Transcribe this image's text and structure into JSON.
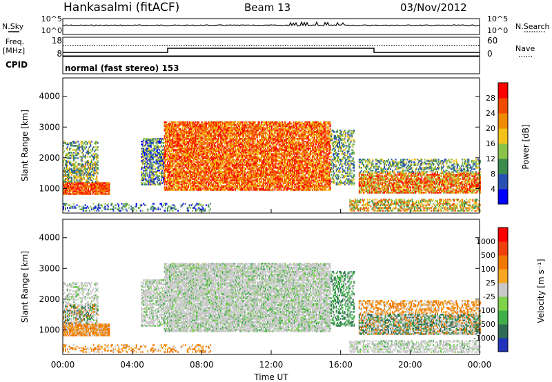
{
  "header": {
    "station": "Hankasalmi (fitACF)",
    "beam": "Beam 13",
    "date": "03/Nov/2012"
  },
  "noise_panel": {
    "left_label": "N.Sky",
    "right_label": "N.Search",
    "ticks_left": [
      "10^5",
      "10^0"
    ],
    "ticks_right": [
      "10^5",
      "10^0"
    ]
  },
  "freq_panel": {
    "left_label_1": "Freq.",
    "left_label_2": "[MHz]",
    "ticks_left": [
      "18",
      "8"
    ],
    "ticks_right": [
      "60",
      "0"
    ],
    "right_label": "Nave"
  },
  "cpid_panel": {
    "label": "CPID",
    "mode_text": "normal (fast stereo) 153"
  },
  "chart_data": [
    {
      "type": "heatmap",
      "title": "",
      "ylabel": "Slant Range [km]",
      "xlabel": "",
      "x_range_hours": [
        0,
        24
      ],
      "ylim": [
        200,
        4600
      ],
      "y_ticks": [
        "1000",
        "2000",
        "3000",
        "4000"
      ],
      "colorbar": {
        "label": "Power [dB]",
        "ticks": [
          "4",
          "8",
          "12",
          "16",
          "20",
          "24",
          "28"
        ],
        "colors": [
          "#0000ff",
          "#2a4fb3",
          "#3b8a4e",
          "#8bc34a",
          "#f2c21b",
          "#f08a00",
          "#f04a00",
          "#ff0000"
        ]
      }
    },
    {
      "type": "heatmap",
      "title": "",
      "ylabel": "Slant Range [km]",
      "xlabel": "Time UT",
      "x_range_hours": [
        0,
        24
      ],
      "ylim": [
        200,
        4600
      ],
      "y_ticks": [
        "1000",
        "2000",
        "3000",
        "4000"
      ],
      "x_ticks": [
        "00:00",
        "04:00",
        "08:00",
        "12:00",
        "16:00",
        "20:00",
        "00:00"
      ],
      "colorbar": {
        "label": "Velocity [m s⁻¹]",
        "ticks": [
          "1000",
          "500",
          "100",
          "25",
          "-25",
          "-100",
          "-500",
          "-1000"
        ],
        "colors": [
          "#2233bb",
          "#2f6a55",
          "#3fae49",
          "#7ed34a",
          "#c8c8c8",
          "#f5a623",
          "#f07800",
          "#f04010",
          "#ff0000"
        ]
      }
    }
  ]
}
